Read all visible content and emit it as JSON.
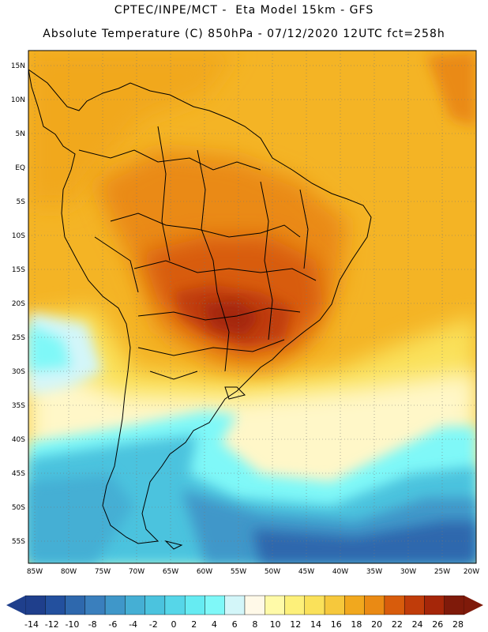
{
  "header": {
    "line1": "CPTEC/INPE/MCT -  Eta Model 15km - GFS",
    "line2": "Absolute Temperature (C) 850hPa - 07/12/2020 12UTC fct=258h"
  },
  "map": {
    "lat_labels": [
      "15N",
      "10N",
      "5N",
      "EQ",
      "5S",
      "10S",
      "15S",
      "20S",
      "25S",
      "30S",
      "35S",
      "40S",
      "45S",
      "50S",
      "55S"
    ],
    "lon_labels": [
      "85W",
      "80W",
      "75W",
      "70W",
      "65W",
      "60W",
      "55W",
      "50W",
      "45W",
      "40W",
      "35W",
      "30W",
      "25W",
      "20W"
    ],
    "grid": "dotted",
    "variable": "Absolute Temperature (C) 850hPa"
  },
  "colorbar": {
    "labels": [
      "-14",
      "-12",
      "-10",
      "-8",
      "-6",
      "-4",
      "-2",
      "0",
      "2",
      "4",
      "6",
      "8",
      "10",
      "12",
      "14",
      "16",
      "18",
      "20",
      "22",
      "24",
      "26",
      "28"
    ],
    "colors": [
      "#1f3f8c",
      "#23509e",
      "#2e68ad",
      "#3a7fbd",
      "#3f97c9",
      "#45afd4",
      "#4bc3de",
      "#56d6e8",
      "#66ebf2",
      "#7ff8f8",
      "#d3f6f9",
      "#fff9e8",
      "#fffaa8",
      "#fdf07a",
      "#fae15a",
      "#f6c83c",
      "#f1a81e",
      "#ea8a14",
      "#d85c0c",
      "#c03c0a",
      "#a52609",
      "#7f1a0a"
    ]
  }
}
